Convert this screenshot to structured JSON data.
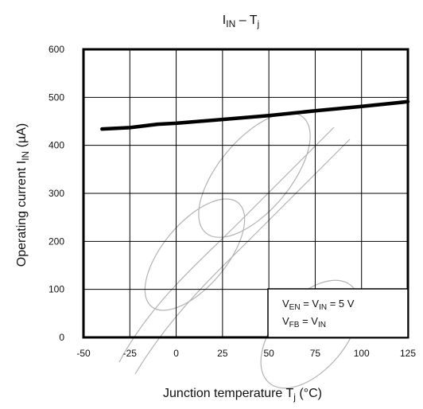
{
  "chart_data": {
    "type": "line",
    "title": {
      "main": "I",
      "sub": "IN",
      "dash": " – T",
      "sub2": "j"
    },
    "ylabel": {
      "text": "Operating current   I",
      "sub": "IN",
      "unit": "   (µA)"
    },
    "xlabel": {
      "text": "Junction temperature   T",
      "sub": "j",
      "unit": "   (°C)"
    },
    "xlim": [
      -50,
      125
    ],
    "ylim": [
      0,
      600
    ],
    "x_ticks": [
      -50,
      -25,
      0,
      25,
      50,
      75,
      100,
      125
    ],
    "y_ticks": [
      0,
      100,
      200,
      300,
      400,
      500,
      600
    ],
    "grid": true,
    "series": [
      {
        "x": [
          -40,
          -25,
          -10,
          0,
          25,
          50,
          75,
          100,
          125
        ],
        "y": [
          434,
          437,
          444,
          446,
          454,
          462,
          472,
          481,
          491
        ]
      }
    ],
    "annotation": {
      "line1": {
        "a": "V",
        "a_sub": "EN",
        "mid": " = V",
        "b_sub": "IN",
        "tail": " = 5 V"
      },
      "line2": {
        "a": "V",
        "a_sub": "FB",
        "mid": " = V",
        "b_sub": "IN"
      }
    }
  }
}
